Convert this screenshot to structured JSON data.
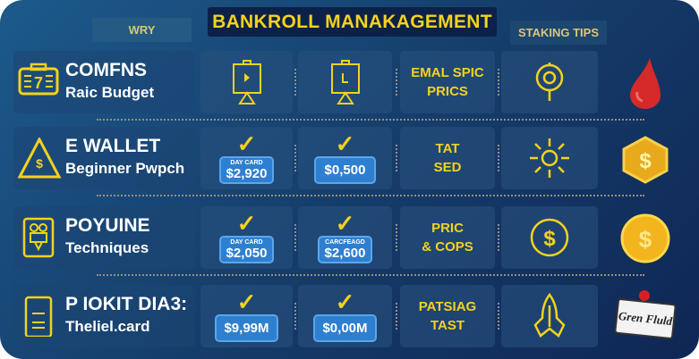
{
  "header": {
    "left_tab": "WRY",
    "title": "BANKROLL MANAKAGEMENT",
    "right_tab": "STAKING TIPS"
  },
  "colors": {
    "accent": "#f4d21c",
    "background": "#16406e",
    "price_badge": "#2f7fd0"
  },
  "rows": [
    {
      "icon": "calculator-icon",
      "title": "COMFNS",
      "subtitle": "Raic Budget",
      "cell1_icon": "easel-chart-icon",
      "cell2_icon": "easel-chart-icon",
      "cell3": [
        "EMAL SPIC",
        "PRICS"
      ],
      "cell4_icon": "location-pin-icon",
      "right_icon": "red-drop-icon"
    },
    {
      "icon": "warning-dollar-icon",
      "title": "E WALLET",
      "subtitle": "Beginner Pwpch",
      "cell1": {
        "label": "DAY CARD",
        "value": "$2,920"
      },
      "cell2": {
        "label": "",
        "value": "$0,500"
      },
      "cell3": [
        "TAT",
        "SED"
      ],
      "cell4_icon": "sun-icon",
      "right_icon": "hexagon-coin-icon"
    },
    {
      "icon": "trophy-icon",
      "title": "POYUINE",
      "subtitle": "Techniques",
      "cell1": {
        "label": "DAY CARD",
        "value": "$2,050"
      },
      "cell2": {
        "label": "CARCFEAGD",
        "value": "$2,600"
      },
      "cell3": [
        "PRIC",
        "& COPS"
      ],
      "cell4_icon": "dollar-circle-icon",
      "right_icon": "gold-coin-icon"
    },
    {
      "icon": "phone-icon",
      "title": "P IOKIT DIA3:",
      "subtitle": "Theliel.card",
      "cell1": {
        "label": "",
        "value": "$9,99M"
      },
      "cell2": {
        "label": "",
        "value": "$0,00M"
      },
      "cell3": [
        "PATSIAG",
        "TAST"
      ],
      "cell4_icon": "rocket-icon",
      "right_icon": "tag-badge-icon",
      "right_badge_text": "Gren Fluld"
    }
  ]
}
